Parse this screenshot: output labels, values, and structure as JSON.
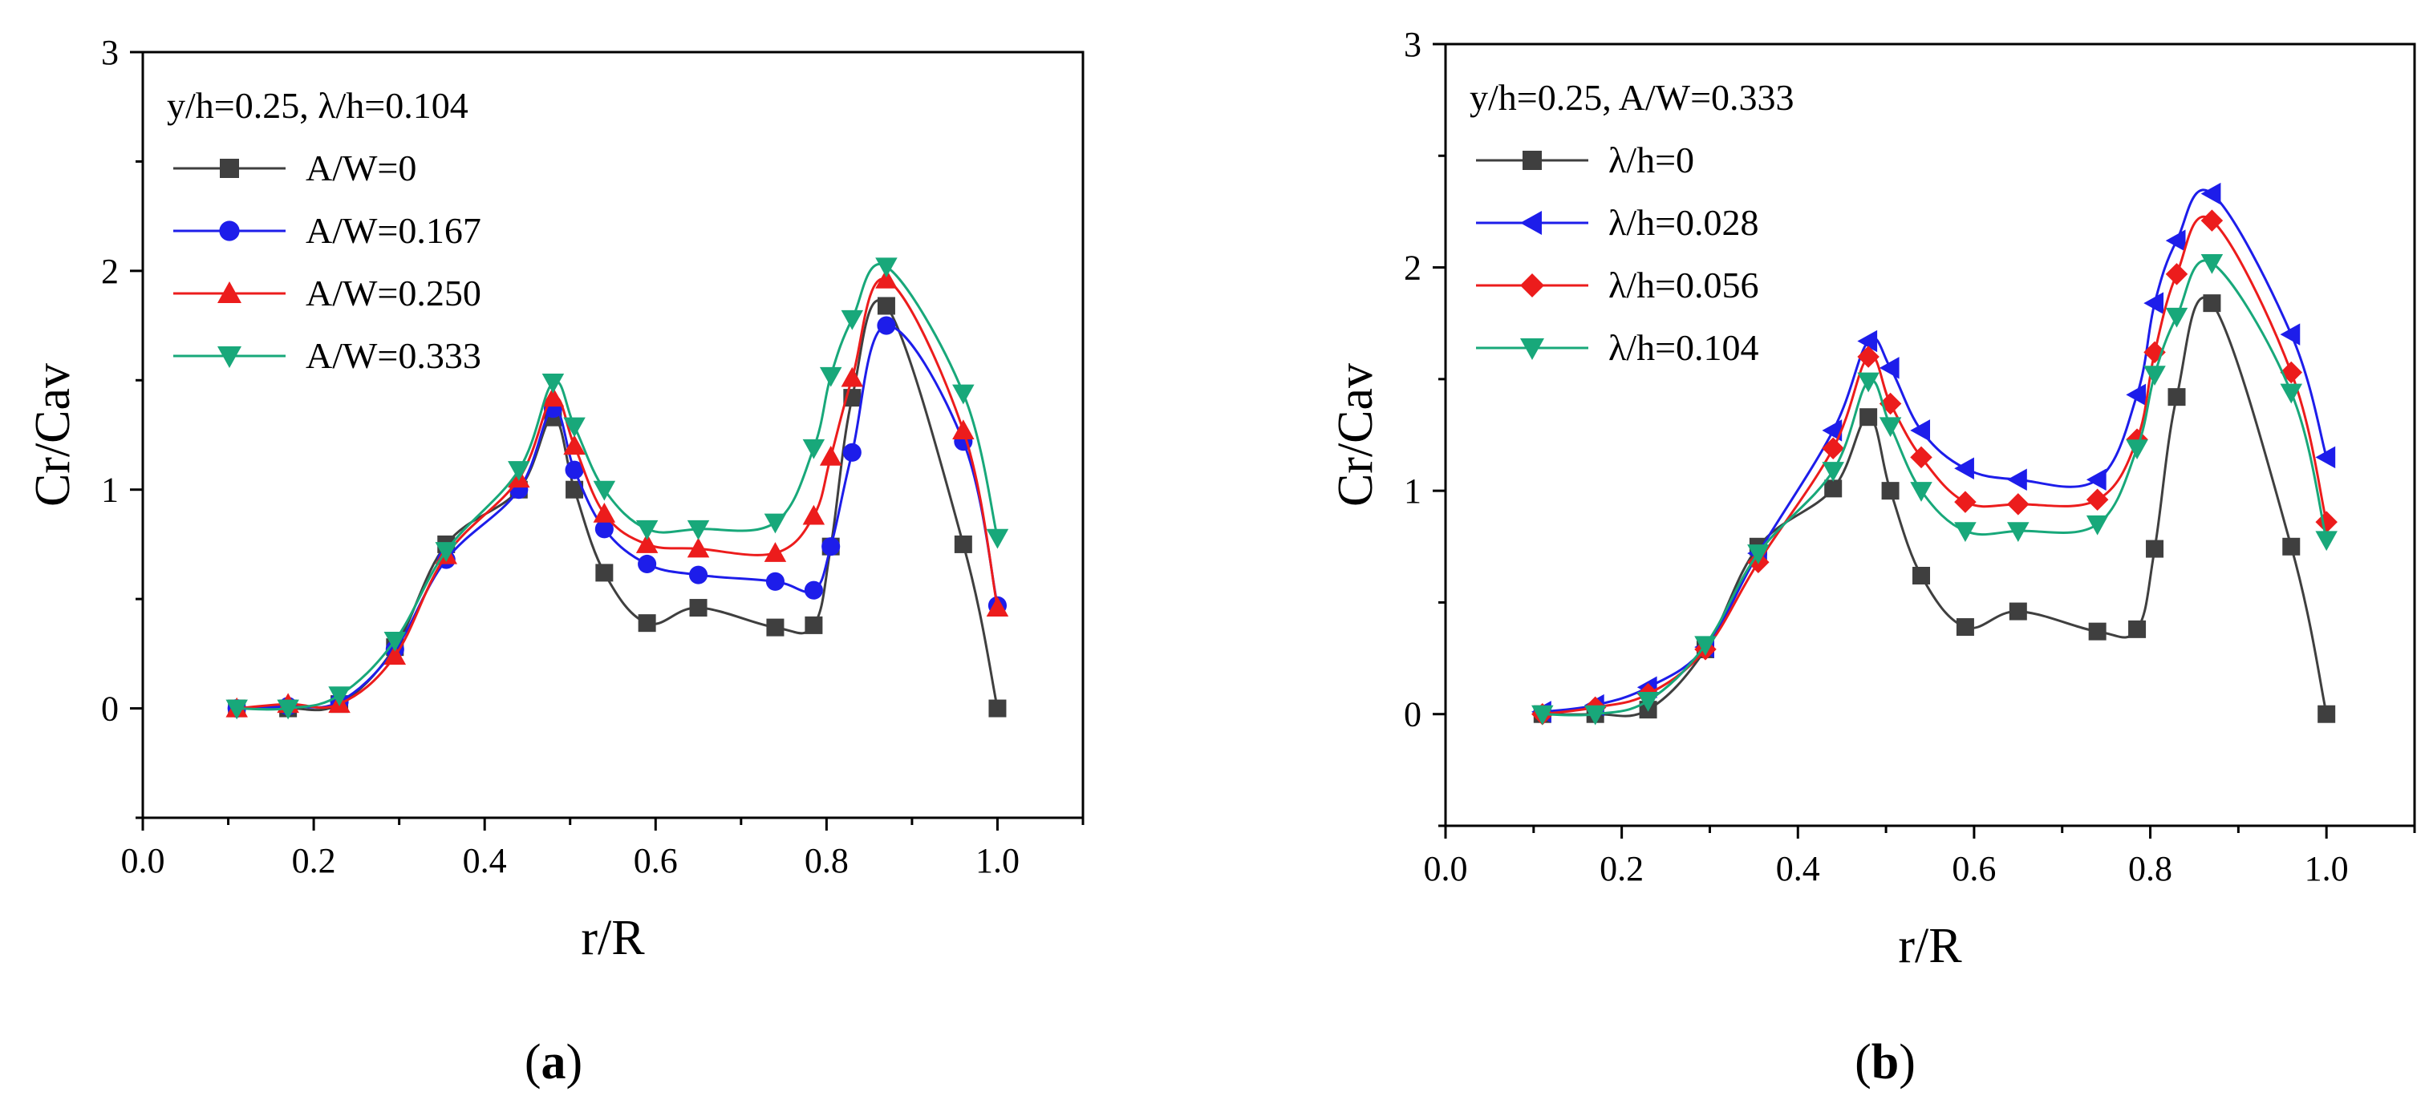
{
  "chart_data": [
    {
      "type": "line",
      "panel_label": "a",
      "xlabel": "r/R",
      "ylabel": "Cr/Cav",
      "xlim": [
        0.0,
        1.1
      ],
      "ylim": [
        -0.5,
        3.0
      ],
      "xticks": [
        "0.0",
        "0.2",
        "0.4",
        "0.6",
        "0.8",
        "1.0"
      ],
      "yticks": [
        "0",
        "1",
        "2",
        "3"
      ],
      "grid": false,
      "legend_placement": "top-left",
      "legend_title": "y/h=0.25, λ/h=0.104",
      "x": [
        0.11,
        0.17,
        0.23,
        0.295,
        0.355,
        0.44,
        0.48,
        0.505,
        0.54,
        0.59,
        0.65,
        0.74,
        0.785,
        0.805,
        0.83,
        0.87,
        0.96,
        1.0
      ],
      "series": [
        {
          "name": "A/W=0",
          "color": "#3f3f3f",
          "marker": "square",
          "values": [
            0.0,
            0.0,
            0.02,
            0.28,
            0.75,
            1.0,
            1.33,
            1.0,
            0.62,
            0.39,
            0.46,
            0.37,
            0.38,
            0.74,
            1.42,
            1.84,
            0.75,
            0.0
          ]
        },
        {
          "name": "A/W=0.167",
          "color": "#1d1dea",
          "marker": "circle",
          "values": [
            0.0,
            0.01,
            0.03,
            0.27,
            0.68,
            1.0,
            1.37,
            1.09,
            0.82,
            0.66,
            0.61,
            0.58,
            0.54,
            0.74,
            1.17,
            1.75,
            1.22,
            0.47
          ]
        },
        {
          "name": "A/W=0.250",
          "color": "#ec1c1c",
          "marker": "triangle-up",
          "values": [
            0.0,
            0.02,
            0.02,
            0.24,
            0.7,
            1.05,
            1.42,
            1.2,
            0.89,
            0.75,
            0.73,
            0.71,
            0.88,
            1.15,
            1.51,
            1.96,
            1.27,
            0.46
          ]
        },
        {
          "name": "A/W=0.333",
          "color": "#18a87a",
          "marker": "triangle-down",
          "values": [
            0.0,
            0.0,
            0.06,
            0.31,
            0.72,
            1.09,
            1.49,
            1.29,
            1.0,
            0.82,
            0.82,
            0.85,
            1.19,
            1.52,
            1.78,
            2.02,
            1.44,
            0.78
          ]
        }
      ]
    },
    {
      "type": "line",
      "panel_label": "b",
      "xlabel": "r/R",
      "ylabel": "Cr/Cav",
      "xlim": [
        0.0,
        1.1
      ],
      "ylim": [
        -0.5,
        3.0
      ],
      "xticks": [
        "0.0",
        "0.2",
        "0.4",
        "0.6",
        "0.8",
        "1.0"
      ],
      "yticks": [
        "0",
        "1",
        "2",
        "3"
      ],
      "grid": false,
      "legend_placement": "top-left",
      "legend_title": "y/h=0.25, A/W=0.333",
      "x": [
        0.11,
        0.17,
        0.23,
        0.295,
        0.355,
        0.44,
        0.48,
        0.505,
        0.54,
        0.59,
        0.65,
        0.74,
        0.785,
        0.805,
        0.83,
        0.87,
        0.96,
        1.0
      ],
      "series": [
        {
          "name": "λ/h=0",
          "color": "#3f3f3f",
          "marker": "square",
          "values": [
            0.0,
            0.0,
            0.02,
            0.29,
            0.75,
            1.01,
            1.33,
            1.0,
            0.62,
            0.39,
            0.46,
            0.37,
            0.38,
            0.74,
            1.42,
            1.84,
            0.75,
            0.0
          ]
        },
        {
          "name": "λ/h=0.028",
          "color": "#1d1dea",
          "marker": "triangle-left",
          "values": [
            0.01,
            0.04,
            0.12,
            0.3,
            0.72,
            1.27,
            1.67,
            1.55,
            1.27,
            1.1,
            1.05,
            1.05,
            1.43,
            1.84,
            2.12,
            2.33,
            1.7,
            1.15
          ]
        },
        {
          "name": "λ/h=0.056",
          "color": "#ec1c1c",
          "marker": "diamond",
          "values": [
            0.0,
            0.03,
            0.09,
            0.29,
            0.68,
            1.19,
            1.6,
            1.39,
            1.15,
            0.95,
            0.94,
            0.96,
            1.23,
            1.62,
            1.97,
            2.21,
            1.53,
            0.86
          ]
        },
        {
          "name": "λ/h=0.104",
          "color": "#18a87a",
          "marker": "triangle-down",
          "values": [
            0.0,
            0.0,
            0.06,
            0.31,
            0.72,
            1.09,
            1.49,
            1.29,
            1.0,
            0.82,
            0.82,
            0.85,
            1.19,
            1.52,
            1.78,
            2.02,
            1.44,
            0.78
          ]
        }
      ]
    }
  ]
}
